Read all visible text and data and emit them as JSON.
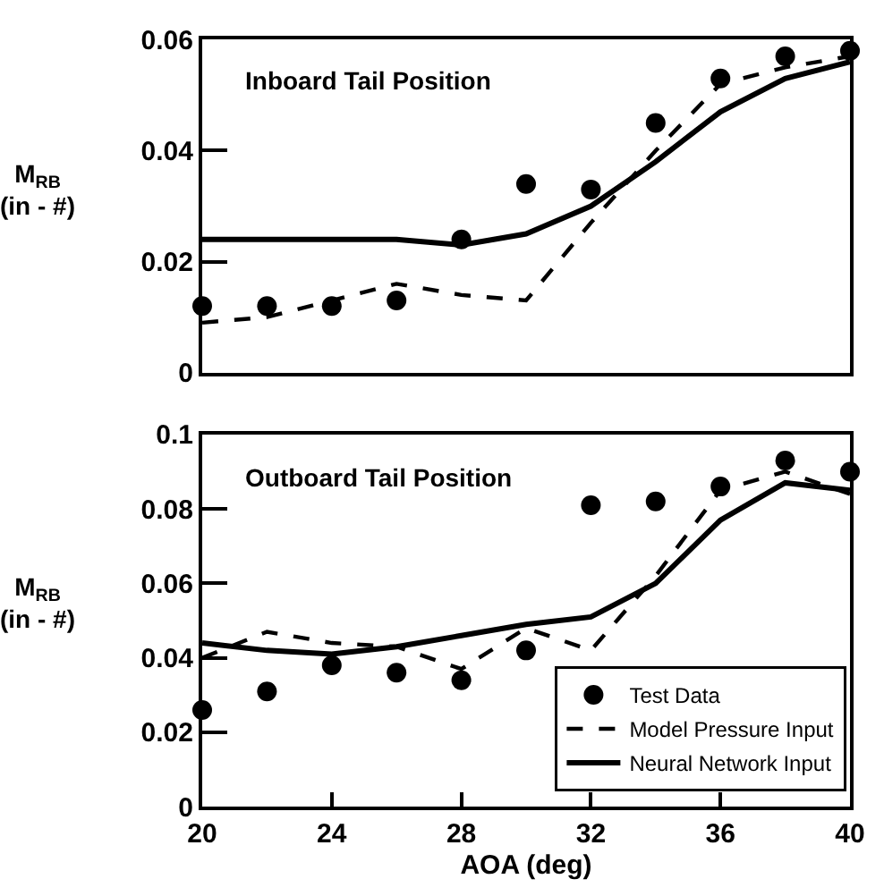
{
  "chart_data": [
    {
      "type": "line",
      "title": "Inboard Tail Position",
      "ylabel": "M$_{RB}$\n(in - #)",
      "x": [
        20,
        22,
        24,
        26,
        28,
        30,
        32,
        34,
        36,
        38,
        40
      ],
      "xlim": [
        20,
        40
      ],
      "ylim": [
        0,
        0.06
      ],
      "yticks": [
        0,
        0.02,
        0.04,
        0.06
      ],
      "tick_labels": "y",
      "grid": false,
      "legend": false,
      "series": [
        {
          "type": "scatter",
          "marker": "circle",
          "color": "#000000",
          "values": [
            0.012,
            0.012,
            0.012,
            0.013,
            0.024,
            0.034,
            0.033,
            0.045,
            0.053,
            0.057,
            0.058
          ]
        },
        {
          "type": "line",
          "line_style": "dashed",
          "color": "#000000",
          "values": [
            0.009,
            0.01,
            0.013,
            0.016,
            0.014,
            0.013,
            0.027,
            0.04,
            0.052,
            0.055,
            0.057
          ]
        },
        {
          "type": "line",
          "line_style": "solid",
          "color": "#000000",
          "values": [
            0.024,
            0.024,
            0.024,
            0.024,
            0.023,
            0.025,
            0.03,
            0.038,
            0.047,
            0.053,
            0.056
          ]
        }
      ]
    },
    {
      "type": "line",
      "title": "Outboard Tail Position",
      "ylabel": "M$_{RB}$\n(in - #)",
      "xlabel": "AOA (deg)",
      "x": [
        20,
        22,
        24,
        26,
        28,
        30,
        32,
        34,
        36,
        38,
        40
      ],
      "xlim": [
        20,
        40
      ],
      "xticks": [
        20,
        24,
        28,
        32,
        36,
        40
      ],
      "ylim": [
        0,
        0.1
      ],
      "yticks": [
        0,
        0.02,
        0.04,
        0.06,
        0.08,
        0.1
      ],
      "grid": false,
      "legend": "bottom right",
      "series": [
        {
          "type": "scatter",
          "name": "Test Data",
          "marker": "circle",
          "color": "#000000",
          "values": [
            0.026,
            0.031,
            0.038,
            0.036,
            0.034,
            0.042,
            0.081,
            0.082,
            0.086,
            0.093,
            0.09
          ]
        },
        {
          "type": "line",
          "name": "Model Pressure Input",
          "line_style": "dashed",
          "color": "#000000",
          "values": [
            0.04,
            0.047,
            0.044,
            0.043,
            0.037,
            0.048,
            0.042,
            0.062,
            0.085,
            0.09,
            0.084
          ]
        },
        {
          "type": "line",
          "name": "Neural Network Input",
          "line_style": "solid",
          "color": "#000000",
          "values": [
            0.044,
            0.042,
            0.041,
            0.043,
            0.046,
            0.049,
            0.051,
            0.06,
            0.077,
            0.087,
            0.085
          ]
        }
      ]
    }
  ]
}
